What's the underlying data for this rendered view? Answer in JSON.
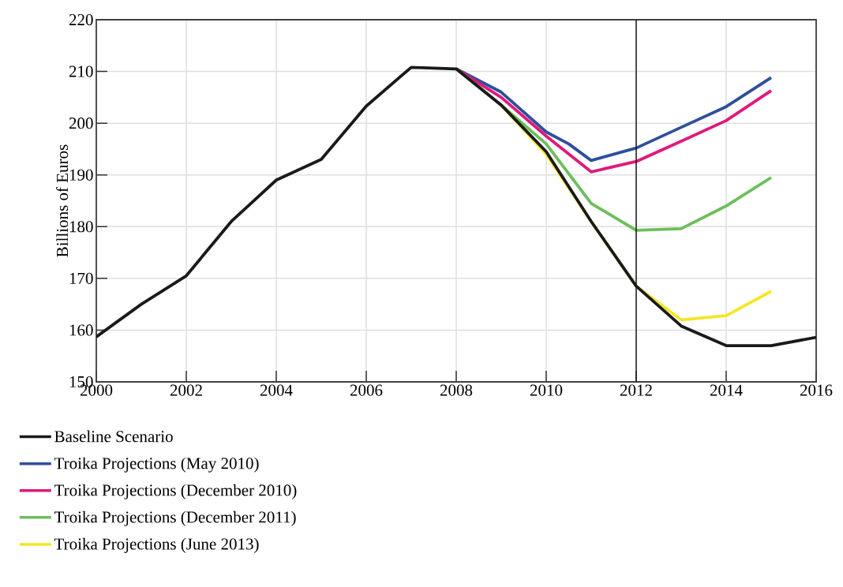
{
  "chart_data": {
    "type": "line",
    "ylabel": "Billions of Euros",
    "xlim": [
      2000,
      2016
    ],
    "xticks": [
      2000,
      2002,
      2004,
      2006,
      2008,
      2010,
      2012,
      2014,
      2016
    ],
    "ylim": [
      150,
      220
    ],
    "yticks": [
      150,
      160,
      170,
      180,
      190,
      200,
      210,
      220
    ],
    "grid": true,
    "legend": "bottom",
    "line_style": "solid",
    "marker": "none",
    "ref_lines": [
      {
        "axis": "x",
        "value": 2012,
        "color": "#1a1a1a"
      }
    ],
    "series": [
      {
        "name": "Baseline Scenario",
        "color": "#1a1a1a",
        "x": [
          2000,
          2001,
          2002,
          2003,
          2004,
          2005,
          2006,
          2007,
          2008,
          2009,
          2010,
          2011,
          2012,
          2013,
          2014,
          2015,
          2016
        ],
        "values": [
          158.7,
          165,
          170.5,
          181,
          189,
          193,
          203.3,
          210.8,
          210.5,
          203.5,
          194.5,
          181,
          168.5,
          160.8,
          157,
          157,
          158.6
        ]
      },
      {
        "name": "Troika Projections (May 2010)",
        "color": "#2e4f9c",
        "x": [
          2008,
          2009,
          2010,
          2010.5,
          2011,
          2012,
          2013,
          2014,
          2015
        ],
        "values": [
          210.5,
          206,
          198.3,
          196,
          192.8,
          195.2,
          199.2,
          203.2,
          208.8
        ]
      },
      {
        "name": "Troika Projections (December 2010)",
        "color": "#e0197a",
        "x": [
          2008,
          2009,
          2010,
          2011,
          2012,
          2013,
          2014,
          2015
        ],
        "values": [
          210.5,
          205,
          197.5,
          190.6,
          192.6,
          196.5,
          200.5,
          206.3
        ]
      },
      {
        "name": "Troika Projections (December 2011)",
        "color": "#6cbf5a",
        "x": [
          2008,
          2009,
          2010,
          2011,
          2012,
          2013,
          2014,
          2015
        ],
        "values": [
          210.5,
          203.5,
          196,
          184.5,
          179.3,
          179.6,
          184,
          189.5
        ]
      },
      {
        "name": "Troika Projections (June 2013)",
        "color": "#f5e625",
        "x": [
          2009,
          2010,
          2011,
          2012,
          2013,
          2014,
          2015
        ],
        "values": [
          203.5,
          194,
          181,
          168.5,
          162,
          162.8,
          167.5
        ]
      }
    ]
  }
}
